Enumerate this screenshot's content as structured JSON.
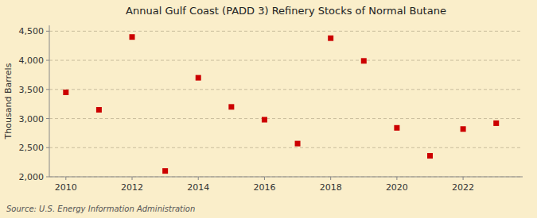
{
  "chart_data": {
    "type": "scatter",
    "title": "Annual Gulf Coast (PADD 3) Refinery Stocks of Normal Butane",
    "y_label": "Thousand Barrels",
    "annotations": [
      "Source: U.S. Energy Information Administration"
    ],
    "x": [
      2010,
      2011,
      2012,
      2013,
      2014,
      2015,
      2016,
      2017,
      2018,
      2019,
      2020,
      2021,
      2022,
      2023
    ],
    "values": [
      3450,
      3150,
      4400,
      2100,
      3700,
      3200,
      2980,
      2570,
      4380,
      3990,
      2840,
      2360,
      2820,
      2920
    ],
    "color": "#cc0000",
    "marker": "square",
    "xlim": [
      2009.5,
      2023.8
    ],
    "xticks": [
      2010,
      2012,
      2014,
      2016,
      2018,
      2020,
      2022
    ],
    "ylim": [
      2000,
      4600
    ],
    "yticks": [
      {
        "value": 2000,
        "label": "2,000"
      },
      {
        "value": 2500,
        "label": "2,500"
      },
      {
        "value": 3000,
        "label": "3,000"
      },
      {
        "value": 3500,
        "label": "3,500"
      },
      {
        "value": 4000,
        "label": "4,000"
      },
      {
        "value": 4500,
        "label": "4,500"
      }
    ],
    "grid": true
  }
}
